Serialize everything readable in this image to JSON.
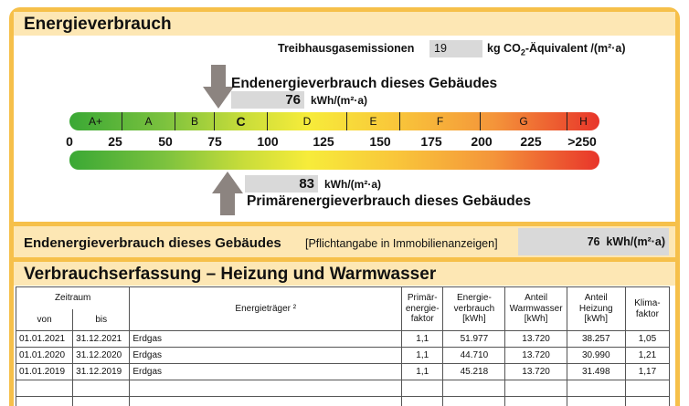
{
  "header": {
    "title": "Energieverbrauch"
  },
  "ghg": {
    "label": "Treibhausgasemissionen",
    "value": "19",
    "unit_prefix": "kg CO",
    "unit_sub": "2",
    "unit_suffix": "-Äquivalent /(m²·a)"
  },
  "end_energy": {
    "title": "Endenergieverbrauch dieses Gebäudes",
    "value": "76",
    "unit": "kWh/(m²·a)"
  },
  "primary_energy": {
    "title": "Primärenergieverbrauch dieses Gebäudes",
    "value": "83",
    "unit": "kWh/(m²·a)"
  },
  "scale": {
    "classes": [
      "A+",
      "A",
      "B",
      "C",
      "D",
      "E",
      "F",
      "G",
      "H"
    ],
    "ticks": [
      "0",
      "25",
      "50",
      "75",
      "100",
      "125",
      "150",
      "175",
      "200",
      "225",
      ">250"
    ]
  },
  "duty": {
    "label": "Endenergieverbrauch dieses Gebäudes",
    "note": "[Pflichtangabe in Immobilienanzeigen]",
    "value": "76",
    "unit": "kWh/(m²·a)"
  },
  "section": {
    "title": "Verbrauchserfassung – Heizung und Warmwasser"
  },
  "table": {
    "zeitraum": "Zeitraum",
    "von": "von",
    "bis": "bis",
    "energietraeger": "Energieträger ²",
    "primaer": [
      "Primär-",
      "energie-",
      "faktor"
    ],
    "energieverbrauch": [
      "Energie-",
      "verbrauch",
      "[kWh]"
    ],
    "warmwasser": [
      "Anteil",
      "Warmwasser",
      "[kWh]"
    ],
    "heizung": [
      "Anteil",
      "Heizung",
      "[kWh]"
    ],
    "klima": [
      "Klima-",
      "faktor"
    ],
    "rows": [
      [
        "01.01.2021",
        "31.12.2021",
        "Erdgas",
        "1,1",
        "51.977",
        "13.720",
        "38.257",
        "1,05"
      ],
      [
        "01.01.2020",
        "31.12.2020",
        "Erdgas",
        "1,1",
        "44.710",
        "13.720",
        "30.990",
        "1,21"
      ],
      [
        "01.01.2019",
        "31.12.2019",
        "Erdgas",
        "1,1",
        "45.218",
        "13.720",
        "31.498",
        "1,17"
      ]
    ]
  }
}
